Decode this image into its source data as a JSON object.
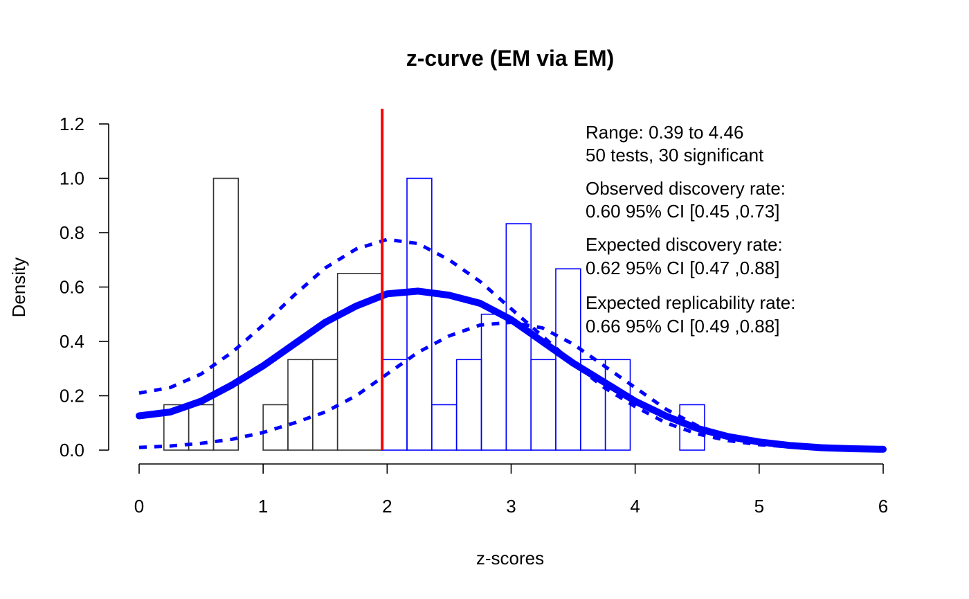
{
  "chart_data": {
    "type": "bar",
    "title": "z-curve (EM via EM)",
    "xlabel": "z-scores",
    "ylabel": "Density",
    "xlim": [
      0,
      6
    ],
    "ylim": [
      0,
      1.2
    ],
    "x_ticks": [
      "0",
      "1",
      "2",
      "3",
      "4",
      "5",
      "6"
    ],
    "y_ticks": [
      "0.0",
      "0.2",
      "0.4",
      "0.6",
      "0.8",
      "1.0",
      "1.2"
    ],
    "significance_line": 1.96,
    "histogram_nonsignificant": {
      "color": "#333333",
      "bins": [
        {
          "x0": 0.2,
          "x1": 0.4,
          "density": 0.167
        },
        {
          "x0": 0.4,
          "x1": 0.6,
          "density": 0.167
        },
        {
          "x0": 0.6,
          "x1": 0.8,
          "density": 1.0
        },
        {
          "x0": 0.8,
          "x1": 1.0,
          "density": 0.0
        },
        {
          "x0": 1.0,
          "x1": 1.2,
          "density": 0.167
        },
        {
          "x0": 1.2,
          "x1": 1.4,
          "density": 0.333
        },
        {
          "x0": 1.4,
          "x1": 1.6,
          "density": 0.333
        },
        {
          "x0": 1.6,
          "x1": 1.96,
          "density": 0.65
        }
      ]
    },
    "histogram_significant": {
      "color": "#0000ff",
      "bins": [
        {
          "x0": 1.96,
          "x1": 2.16,
          "density": 0.333
        },
        {
          "x0": 2.16,
          "x1": 2.36,
          "density": 1.0
        },
        {
          "x0": 2.36,
          "x1": 2.56,
          "density": 0.167
        },
        {
          "x0": 2.56,
          "x1": 2.76,
          "density": 0.333
        },
        {
          "x0": 2.76,
          "x1": 2.96,
          "density": 0.5
        },
        {
          "x0": 2.96,
          "x1": 3.16,
          "density": 0.833
        },
        {
          "x0": 3.16,
          "x1": 3.36,
          "density": 0.333
        },
        {
          "x0": 3.36,
          "x1": 3.56,
          "density": 0.667
        },
        {
          "x0": 3.56,
          "x1": 3.76,
          "density": 0.333
        },
        {
          "x0": 3.76,
          "x1": 3.96,
          "density": 0.333
        },
        {
          "x0": 3.96,
          "x1": 4.16,
          "density": 0.0
        },
        {
          "x0": 4.16,
          "x1": 4.36,
          "density": 0.0
        },
        {
          "x0": 4.36,
          "x1": 4.56,
          "density": 0.167
        }
      ]
    },
    "curves": [
      {
        "style": "solid",
        "color": "#0000ff",
        "x": [
          0,
          0.25,
          0.5,
          0.75,
          1.0,
          1.25,
          1.5,
          1.75,
          2.0,
          2.25,
          2.5,
          2.75,
          3.0,
          3.25,
          3.5,
          3.75,
          4.0,
          4.25,
          4.5,
          4.75,
          5.0,
          5.25,
          5.5,
          5.75,
          6.0
        ],
        "y": [
          0.126,
          0.14,
          0.18,
          0.24,
          0.31,
          0.39,
          0.47,
          0.53,
          0.575,
          0.585,
          0.57,
          0.54,
          0.48,
          0.4,
          0.32,
          0.25,
          0.18,
          0.125,
          0.08,
          0.05,
          0.03,
          0.017,
          0.009,
          0.005,
          0.003
        ]
      },
      {
        "style": "dashed",
        "color": "#0000ff",
        "x": [
          0,
          0.25,
          0.5,
          0.75,
          1.0,
          1.25,
          1.5,
          1.75,
          2.0,
          2.25,
          2.5,
          2.75,
          3.0,
          3.25,
          3.5,
          3.75,
          4.0,
          4.25,
          4.5,
          4.75,
          5.0,
          5.25,
          5.5,
          5.75,
          6.0
        ],
        "y": [
          0.21,
          0.23,
          0.28,
          0.36,
          0.46,
          0.57,
          0.67,
          0.74,
          0.775,
          0.76,
          0.7,
          0.62,
          0.52,
          0.42,
          0.32,
          0.23,
          0.16,
          0.1,
          0.06,
          0.035,
          0.02,
          0.012,
          0.007,
          0.004,
          0.002
        ]
      },
      {
        "style": "dashed",
        "color": "#0000ff",
        "x": [
          0,
          0.25,
          0.5,
          0.75,
          1.0,
          1.25,
          1.5,
          1.75,
          2.0,
          2.25,
          2.5,
          2.75,
          3.0,
          3.25,
          3.5,
          3.75,
          4.0,
          4.25,
          4.5,
          4.75,
          5.0,
          5.25,
          5.5,
          5.75,
          6.0
        ],
        "y": [
          0.01,
          0.015,
          0.025,
          0.04,
          0.065,
          0.1,
          0.14,
          0.2,
          0.28,
          0.36,
          0.42,
          0.46,
          0.47,
          0.45,
          0.39,
          0.31,
          0.23,
          0.15,
          0.09,
          0.05,
          0.025,
          0.012,
          0.006,
          0.003,
          0.001
        ]
      }
    ],
    "annotations": [
      "Range: 0.39 to 4.46",
      "50 tests, 30 significant",
      "Observed discovery rate:",
      "0.60  95% CI [0.45 ,0.73]",
      "Expected discovery rate:",
      "0.62  95% CI [0.47 ,0.88]",
      "Expected replicability rate:",
      "0.66  95% CI [0.49 ,0.88]"
    ]
  }
}
